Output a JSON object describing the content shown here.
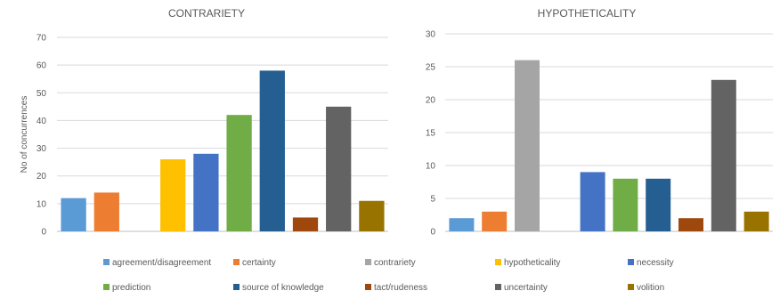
{
  "chart_data": [
    {
      "type": "bar",
      "title": "CONTRARIETY",
      "ylabel": "No of concurrences",
      "xlabel": "",
      "ylim": [
        0,
        70
      ],
      "yticks": [
        0,
        10,
        20,
        30,
        40,
        50,
        60,
        70
      ],
      "grid": true,
      "categories": [
        "agreement/disagreement",
        "certainty",
        "contrariety",
        "hypotheticality",
        "necessity",
        "prediction",
        "source of knowledge",
        "tact/rudeness",
        "uncertainty",
        "volition"
      ],
      "values": [
        12,
        14,
        0,
        26,
        28,
        42,
        58,
        5,
        45,
        11
      ]
    },
    {
      "type": "bar",
      "title": "HYPOTHETICALITY",
      "ylabel": "",
      "xlabel": "",
      "ylim": [
        0,
        30
      ],
      "yticks": [
        0,
        5,
        10,
        15,
        20,
        25,
        30
      ],
      "grid": true,
      "categories": [
        "agreement/disagreement",
        "certainty",
        "contrariety",
        "hypotheticality",
        "necessity",
        "prediction",
        "source of knowledge",
        "tact/rudeness",
        "uncertainty",
        "volition"
      ],
      "values": [
        2,
        3,
        26,
        0,
        9,
        8,
        8,
        2,
        23,
        3
      ]
    }
  ],
  "legend": {
    "placement": "bottom",
    "items": [
      {
        "label": "agreement/disagreement",
        "color": "#5B9BD5"
      },
      {
        "label": "certainty",
        "color": "#ED7D31"
      },
      {
        "label": "contrariety",
        "color": "#A5A5A5"
      },
      {
        "label": "hypotheticality",
        "color": "#FFC000"
      },
      {
        "label": "necessity",
        "color": "#4472C4"
      },
      {
        "label": "prediction",
        "color": "#70AD47"
      },
      {
        "label": "source of knowledge",
        "color": "#255E91"
      },
      {
        "label": "tact/rudeness",
        "color": "#9E480E"
      },
      {
        "label": "uncertainty",
        "color": "#636363"
      },
      {
        "label": "volition",
        "color": "#997300"
      }
    ]
  }
}
